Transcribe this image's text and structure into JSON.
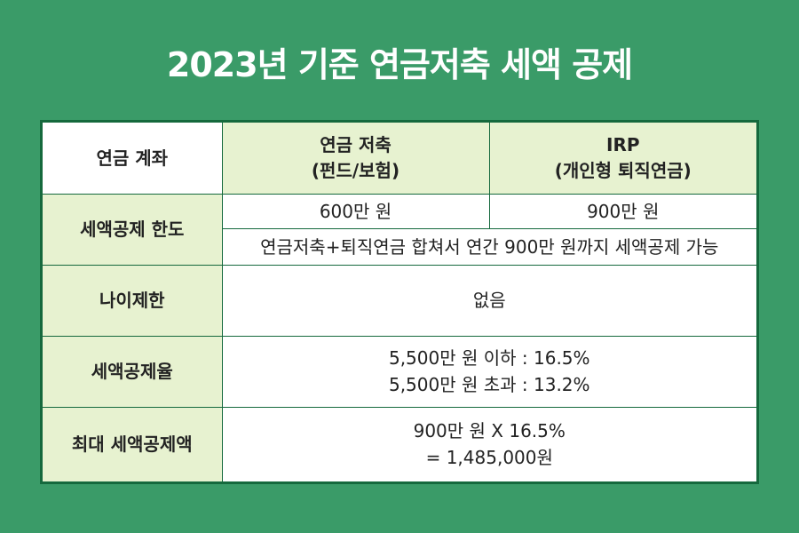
{
  "title": "2023년 기준 연금저축 세액 공제",
  "table": {
    "corner_label": "연금 계좌",
    "headers": [
      {
        "line1": "연금 저축",
        "line2": "(펀드/보험)"
      },
      {
        "line1": "IRP",
        "line2": "(개인형 퇴직연금)"
      }
    ],
    "rows": {
      "limit": {
        "label": "세액공제 한도",
        "pension_savings": "600만 원",
        "irp": "900만 원",
        "combined": "연금저축+퇴직연금 합쳐서 연간 900만 원까지 세액공제 가능"
      },
      "age_limit": {
        "label": "나이제한",
        "value": "없음"
      },
      "rate": {
        "label": "세액공제율",
        "line1": "5,500만 원 이하 : 16.5%",
        "line2": "5,500만 원 초과 : 13.2%"
      },
      "max_deduction": {
        "label": "최대 세액공제액",
        "line1": "900만 원 X 16.5%",
        "line2": "= 1,485,000원"
      }
    }
  },
  "colors": {
    "background": "#3a9b68",
    "border": "#15693d",
    "header_fill": "#e7f2d0",
    "cell_fill": "#ffffff",
    "title_text": "#ffffff"
  }
}
